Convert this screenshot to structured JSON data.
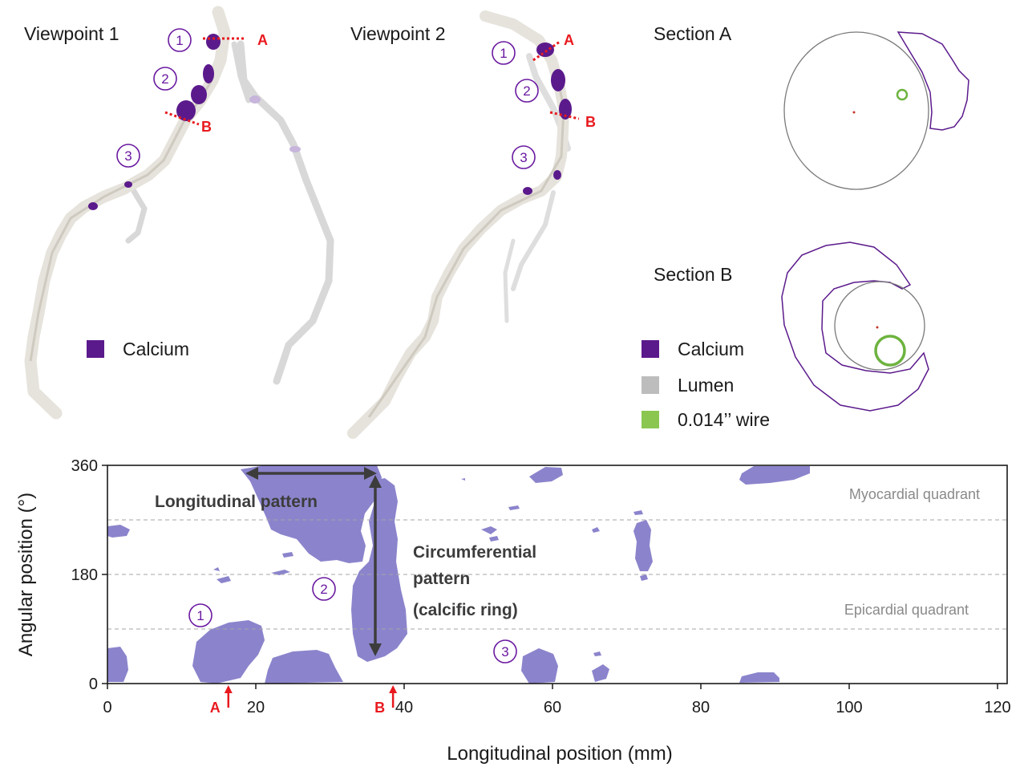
{
  "top_panels": {
    "viewpoint1_title": "Viewpoint 1",
    "viewpoint2_title": "Viewpoint 2",
    "sectionA_title": "Section A",
    "sectionB_title": "Section B",
    "viewpoint1_legend": "Calcium",
    "section_legend": [
      {
        "label": "Calcium",
        "color": "#5b1a8c"
      },
      {
        "label": "Lumen",
        "color": "#bdbdbd"
      },
      {
        "label": "0.014’’ wire",
        "color": "#8ac650"
      }
    ],
    "markers": [
      "1",
      "2",
      "3"
    ],
    "section_labels": [
      "A",
      "B"
    ]
  },
  "chart_data": {
    "type": "heatmap",
    "xlabel": "Longitudinal position (mm)",
    "ylabel": "Angular position (°)",
    "xlim": [
      0,
      120
    ],
    "ylim": [
      0,
      360
    ],
    "xticks": [
      "0",
      "20",
      "40",
      "60",
      "80",
      "100",
      "120"
    ],
    "yticks": [
      "0",
      "180",
      "360"
    ],
    "reference_lines_deg": [
      90,
      180,
      270
    ],
    "quadrant_labels": [
      "Myocardial quadrant",
      "Epicardial quadrant"
    ],
    "annotations": {
      "longitudinal": "Longitudinal pattern",
      "circumferential": [
        "Circumferential",
        "pattern",
        "(calcific ring)"
      ]
    },
    "section_markers": [
      {
        "label": "A",
        "x_mm": 16.3
      },
      {
        "label": "B",
        "x_mm": 38.5
      }
    ],
    "region_markers": [
      "1",
      "2",
      "3"
    ],
    "calcium_color": "#8b84cc"
  }
}
